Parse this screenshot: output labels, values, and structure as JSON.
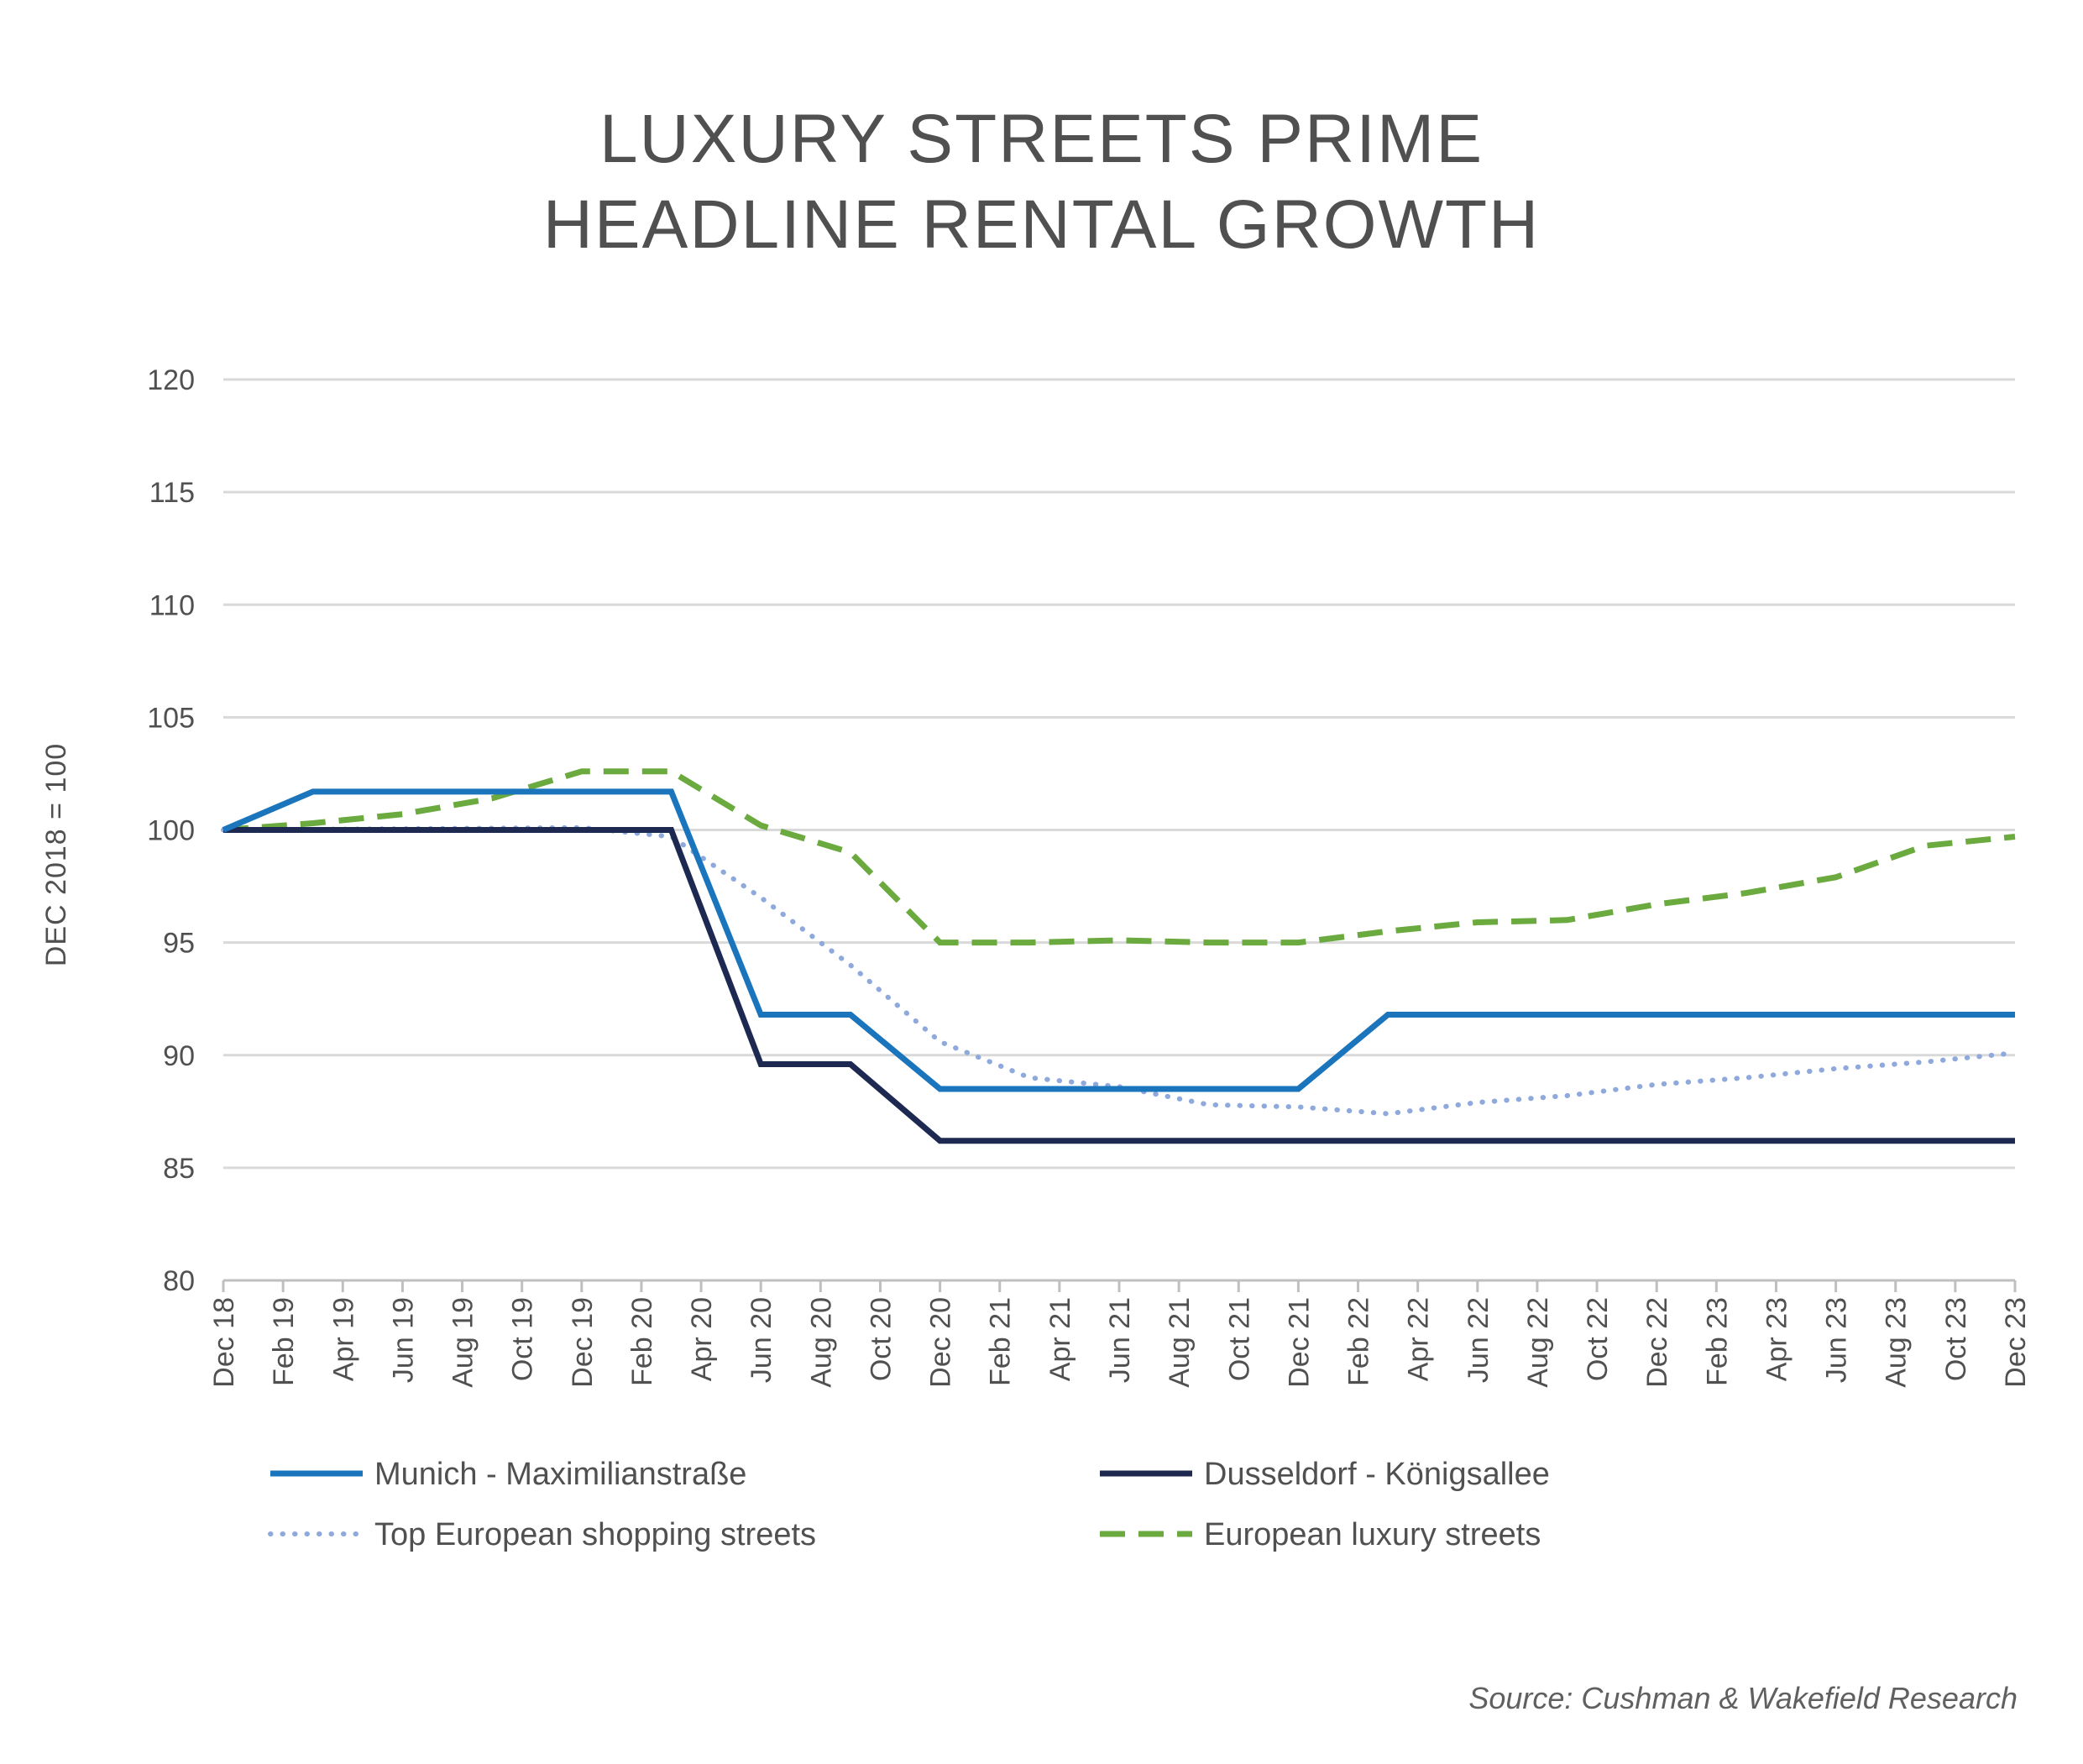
{
  "chart_data": {
    "type": "line",
    "title": [
      "LUXURY STREETS PRIME",
      "HEADLINE RENTAL GROWTH"
    ],
    "ylabel": "DEC 2018 = 100",
    "ylim": [
      80,
      120
    ],
    "yticks": [
      "120",
      "115",
      "110",
      "105",
      "100",
      "95",
      "90",
      "85",
      "80"
    ],
    "grid": true,
    "legend_position": "bottom",
    "categories": [
      "Dec 18",
      "Feb 19",
      "Apr 19",
      "Jun 19",
      "Aug 19",
      "Oct 19",
      "Dec 19",
      "Feb 20",
      "Apr 20",
      "Jun 20",
      "Aug 20",
      "Oct 20",
      "Dec 20",
      "Feb 21",
      "Apr 21",
      "Jun 21",
      "Aug 21",
      "Oct 21",
      "Dec 21",
      "Feb 22",
      "Apr 22",
      "Jun 22",
      "Aug 22",
      "Oct 22",
      "Dec 22",
      "Feb 23",
      "Apr 23",
      "Jun 23",
      "Aug 23",
      "Oct 23",
      "Dec 23"
    ],
    "series": [
      {
        "name": "Munich - Maximilianstraße",
        "color": "#1a75bc",
        "style": "solid",
        "points": [
          [
            "Dec 18",
            100
          ],
          [
            "Mar 19",
            101.7
          ],
          [
            "Mar 20",
            101.7
          ],
          [
            "Jun 20",
            91.8
          ],
          [
            "Sep 20",
            91.8
          ],
          [
            "Dec 20",
            88.5
          ],
          [
            "Dec 21",
            88.5
          ],
          [
            "Mar 22",
            91.8
          ],
          [
            "Dec 23",
            91.8
          ]
        ]
      },
      {
        "name": "Dusseldorf - Königsallee",
        "color": "#1d2951",
        "style": "solid",
        "points": [
          [
            "Dec 18",
            100
          ],
          [
            "Mar 20",
            100
          ],
          [
            "Jun 20",
            89.6
          ],
          [
            "Sep 20",
            89.6
          ],
          [
            "Dec 20",
            86.2
          ],
          [
            "Dec 23",
            86.2
          ]
        ]
      },
      {
        "name": "Top European shopping streets",
        "color": "#8fa9dc",
        "style": "dotted",
        "points": [
          [
            "Dec 18",
            100
          ],
          [
            "Dec 19",
            100.1
          ],
          [
            "Mar 20",
            99.7
          ],
          [
            "Jun 20",
            97
          ],
          [
            "Sep 20",
            94
          ],
          [
            "Dec 20",
            90.6
          ],
          [
            "Mar 21",
            89
          ],
          [
            "Jun 21",
            88.6
          ],
          [
            "Sep 21",
            87.8
          ],
          [
            "Dec 21",
            87.7
          ],
          [
            "Mar 22",
            87.4
          ],
          [
            "Jun 22",
            87.9
          ],
          [
            "Sep 22",
            88.2
          ],
          [
            "Dec 22",
            88.7
          ],
          [
            "Mar 23",
            89
          ],
          [
            "Jun 23",
            89.4
          ],
          [
            "Sep 23",
            89.7
          ],
          [
            "Dec 23",
            90.1
          ]
        ]
      },
      {
        "name": "European luxury streets",
        "color": "#6aaa3e",
        "style": "dashed",
        "points": [
          [
            "Dec 18",
            100
          ],
          [
            "Mar 19",
            100.3
          ],
          [
            "Jun 19",
            100.7
          ],
          [
            "Sep 19",
            101.4
          ],
          [
            "Dec 19",
            102.6
          ],
          [
            "Mar 20",
            102.6
          ],
          [
            "Jun 20",
            100.2
          ],
          [
            "Sep 20",
            99
          ],
          [
            "Dec 20",
            95
          ],
          [
            "Mar 21",
            95
          ],
          [
            "Jun 21",
            95.1
          ],
          [
            "Sep 21",
            95
          ],
          [
            "Dec 21",
            95
          ],
          [
            "Mar 22",
            95.5
          ],
          [
            "Jun 22",
            95.9
          ],
          [
            "Sep 22",
            96
          ],
          [
            "Dec 22",
            96.7
          ],
          [
            "Mar 23",
            97.2
          ],
          [
            "Jun 23",
            97.9
          ],
          [
            "Sep 23",
            99.3
          ],
          [
            "Dec 23",
            99.7
          ]
        ]
      }
    ]
  },
  "source": "Source: Cushman & Wakefield Research"
}
